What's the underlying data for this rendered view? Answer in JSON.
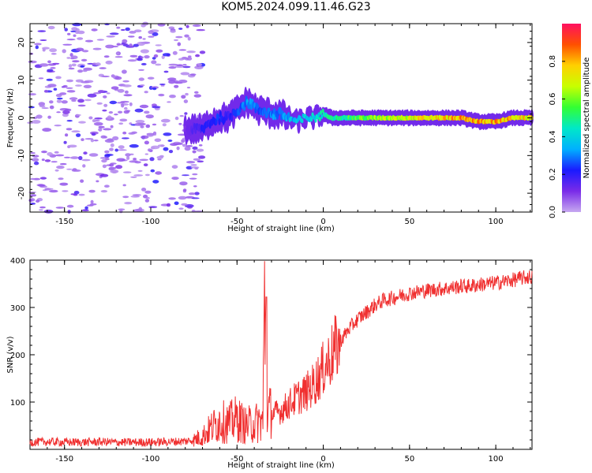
{
  "title": "KOM5.2024.099.11.46.G23",
  "chart_data": [
    {
      "type": "heatmap",
      "xlabel": "Height of straight line (km)",
      "ylabel": "Frequency (Hz)",
      "xlim": [
        -170,
        121
      ],
      "ylim": [
        -25,
        25
      ],
      "xticks": [
        -150,
        -100,
        -50,
        0,
        50,
        100
      ],
      "yticks": [
        -20,
        -10,
        0,
        10,
        20
      ],
      "colorbar": {
        "label": "Normalized spectral amplitude",
        "range": [
          0,
          1
        ],
        "ticks": [
          "0.0",
          "0.2",
          "0.4",
          "0.6",
          "0.8"
        ],
        "colormap": "gist_rainbow_r",
        "stops": [
          "#c6a8f0",
          "#7a2be8",
          "#1a1aff",
          "#00b0ff",
          "#00e8c8",
          "#33ff33",
          "#c8ff00",
          "#ffd000",
          "#ff5000",
          "#ff1060"
        ]
      },
      "ridge": {
        "x": [
          -80,
          -75,
          -70,
          -65,
          -60,
          -55,
          -50,
          -45,
          -42,
          -38,
          -35,
          -30,
          -25,
          -20,
          -15,
          -10,
          -5,
          0,
          5,
          10,
          20,
          30,
          40,
          50,
          60,
          70,
          80,
          90,
          100,
          110,
          121
        ],
        "frequency": [
          -3,
          -3,
          -3,
          -1,
          0,
          0,
          2,
          4,
          4,
          2,
          2,
          1,
          1,
          0,
          -1,
          0,
          0,
          1,
          0,
          0,
          0,
          0,
          0,
          0,
          0,
          0,
          0,
          -1,
          -1,
          0,
          0
        ],
        "amplitude": [
          0.1,
          0.15,
          0.2,
          0.2,
          0.25,
          0.2,
          0.25,
          0.3,
          0.3,
          0.25,
          0.25,
          0.3,
          0.3,
          0.35,
          0.35,
          0.4,
          0.4,
          0.45,
          0.45,
          0.5,
          0.55,
          0.6,
          0.65,
          0.7,
          0.72,
          0.75,
          0.78,
          0.8,
          0.8,
          0.75,
          0.7
        ]
      }
    },
    {
      "type": "line",
      "xlabel": "Height of straight line (km)",
      "ylabel": "SNR (v/v)",
      "xlim": [
        -170,
        121
      ],
      "ylim": [
        0,
        400
      ],
      "xticks": [
        -150,
        -100,
        -50,
        0,
        50,
        100
      ],
      "yticks": [
        100,
        200,
        300,
        400
      ],
      "color": "#f03030",
      "series": [
        {
          "x": [
            -170,
            -160,
            -150,
            -140,
            -130,
            -120,
            -110,
            -100,
            -90,
            -80,
            -75,
            -70,
            -65,
            -60,
            -55,
            -50,
            -45,
            -40,
            -35,
            -34,
            -33,
            -32,
            -30,
            -25,
            -20,
            -15,
            -10,
            -5,
            0,
            5,
            10,
            15,
            20,
            25,
            30,
            35,
            40,
            45,
            50,
            55,
            60,
            65,
            70,
            75,
            80,
            85,
            90,
            95,
            100,
            105,
            110,
            115,
            121
          ],
          "y": [
            15,
            16,
            15,
            15,
            16,
            15,
            15,
            15,
            16,
            17,
            20,
            28,
            45,
            60,
            55,
            65,
            50,
            55,
            60,
            320,
            120,
            80,
            75,
            80,
            95,
            110,
            120,
            140,
            170,
            200,
            230,
            255,
            275,
            290,
            305,
            315,
            320,
            325,
            330,
            333,
            336,
            338,
            340,
            342,
            345,
            345,
            348,
            350,
            352,
            355,
            358,
            362,
            365
          ]
        }
      ]
    }
  ]
}
